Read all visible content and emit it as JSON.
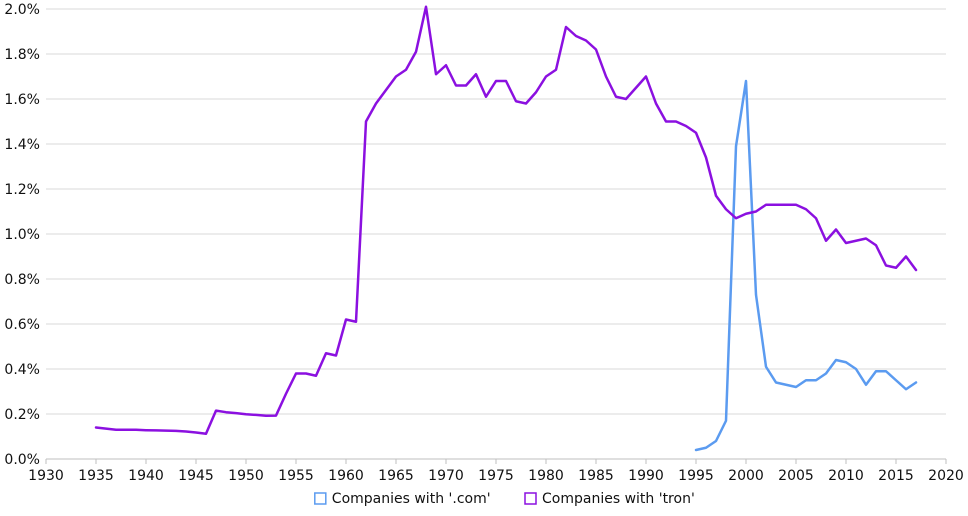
{
  "chart_data": {
    "type": "line",
    "title": "",
    "xlabel": "",
    "ylabel": "",
    "xlim": [
      1930,
      2020
    ],
    "ylim": [
      0,
      0.02
    ],
    "x_ticks": [
      1930,
      1935,
      1940,
      1945,
      1950,
      1955,
      1960,
      1965,
      1970,
      1975,
      1980,
      1985,
      1990,
      1995,
      2000,
      2005,
      2010,
      2015,
      2020
    ],
    "x_tick_labels": [
      "1930",
      "1935",
      "1940",
      "1945",
      "1950",
      "1955",
      "1960",
      "1965",
      "1970",
      "1975",
      "1980",
      "1985",
      "1990",
      "1995",
      "2000",
      "2005",
      "2010",
      "2015",
      "2020"
    ],
    "y_ticks": [
      0,
      0.002,
      0.004,
      0.006,
      0.008,
      0.01,
      0.012,
      0.014,
      0.016,
      0.018,
      0.02
    ],
    "y_tick_labels": [
      "0.0%",
      "0.2%",
      "0.4%",
      "0.6%",
      "0.8%",
      "1.0%",
      "1.2%",
      "1.4%",
      "1.6%",
      "1.8%",
      "2.0%"
    ],
    "grid": "horizontal",
    "legend_position": "bottom",
    "series": [
      {
        "name": "Companies with '.com'",
        "color": "#5b9bf0",
        "x": [
          1995,
          1996,
          1997,
          1998,
          1999,
          2000,
          2001,
          2002,
          2003,
          2004,
          2005,
          2006,
          2007,
          2008,
          2009,
          2010,
          2011,
          2012,
          2013,
          2014,
          2015,
          2016,
          2017
        ],
        "values": [
          0.0004,
          0.0005,
          0.0008,
          0.0017,
          0.0139,
          0.0168,
          0.0073,
          0.0041,
          0.0034,
          0.0033,
          0.0032,
          0.0035,
          0.0035,
          0.0038,
          0.0044,
          0.0043,
          0.004,
          0.0033,
          0.0039,
          0.0039,
          0.0035,
          0.0031,
          0.0034
        ]
      },
      {
        "name": "Companies with 'tron'",
        "color": "#8b10e0",
        "x": [
          1935,
          1936,
          1937,
          1938,
          1939,
          1940,
          1941,
          1942,
          1943,
          1944,
          1945,
          1946,
          1947,
          1948,
          1949,
          1950,
          1951,
          1952,
          1953,
          1954,
          1955,
          1956,
          1957,
          1958,
          1959,
          1960,
          1961,
          1962,
          1963,
          1964,
          1965,
          1966,
          1967,
          1968,
          1969,
          1970,
          1971,
          1972,
          1973,
          1974,
          1975,
          1976,
          1977,
          1978,
          1979,
          1980,
          1981,
          1982,
          1983,
          1984,
          1985,
          1986,
          1987,
          1988,
          1989,
          1990,
          1991,
          1992,
          1993,
          1994,
          1995,
          1996,
          1997,
          1998,
          1999,
          2000,
          2001,
          2002,
          2003,
          2004,
          2005,
          2006,
          2007,
          2008,
          2009,
          2010,
          2011,
          2012,
          2013,
          2014,
          2015,
          2016,
          2017
        ],
        "values": [
          0.0014,
          0.00135,
          0.0013,
          0.0013,
          0.0013,
          0.00128,
          0.00127,
          0.00126,
          0.00125,
          0.00122,
          0.00118,
          0.00112,
          0.00215,
          0.00208,
          0.00204,
          0.00199,
          0.00196,
          0.00192,
          0.00193,
          0.0029,
          0.0038,
          0.0038,
          0.0037,
          0.0047,
          0.0046,
          0.0062,
          0.0061,
          0.015,
          0.0158,
          0.0164,
          0.017,
          0.0173,
          0.0181,
          0.0201,
          0.0171,
          0.0175,
          0.0166,
          0.0166,
          0.0171,
          0.0161,
          0.0168,
          0.0168,
          0.0159,
          0.0158,
          0.0163,
          0.017,
          0.0173,
          0.0192,
          0.0188,
          0.0186,
          0.0182,
          0.017,
          0.0161,
          0.016,
          0.0165,
          0.017,
          0.0158,
          0.015,
          0.015,
          0.0148,
          0.0145,
          0.0134,
          0.0117,
          0.0111,
          0.0107,
          0.0109,
          0.011,
          0.0113,
          0.0113,
          0.0113,
          0.0113,
          0.0111,
          0.0107,
          0.0097,
          0.0102,
          0.0096,
          0.0097,
          0.0098,
          0.0095,
          0.0086,
          0.0085,
          0.009,
          0.0084
        ]
      }
    ]
  }
}
